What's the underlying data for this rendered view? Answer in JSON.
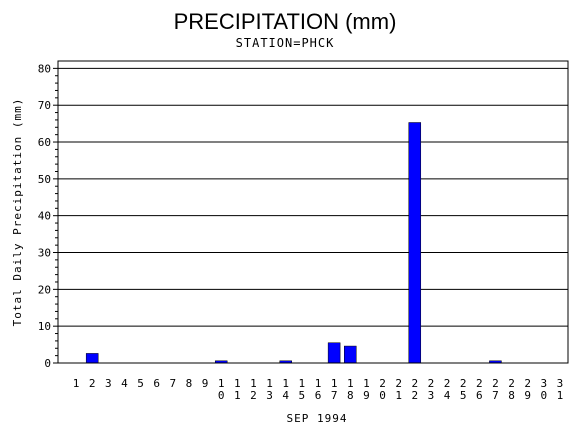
{
  "chart_data": {
    "type": "bar",
    "title": "PRECIPITATION (mm)",
    "subtitle": "STATION=PHCK",
    "xlabel": "SEP 1994",
    "ylabel": "Total Daily Precipitation (mm)",
    "ylim": [
      0,
      82
    ],
    "yticks": [
      0,
      10,
      20,
      30,
      40,
      50,
      60,
      70,
      80
    ],
    "grid": true,
    "bar_color": "#0000ff",
    "categories": [
      "1",
      "2",
      "3",
      "4",
      "5",
      "6",
      "7",
      "8",
      "9",
      "10",
      "11",
      "12",
      "13",
      "14",
      "15",
      "16",
      "17",
      "18",
      "19",
      "20",
      "21",
      "22",
      "23",
      "24",
      "25",
      "26",
      "27",
      "28",
      "29",
      "30",
      "31"
    ],
    "values": [
      0,
      2.6,
      0,
      0,
      0,
      0,
      0,
      0,
      0,
      0.6,
      0,
      0,
      0,
      0.6,
      0,
      0,
      5.5,
      4.6,
      0,
      0,
      0,
      65.3,
      0,
      0,
      0,
      0,
      0.6,
      0,
      0,
      0,
      0
    ]
  }
}
